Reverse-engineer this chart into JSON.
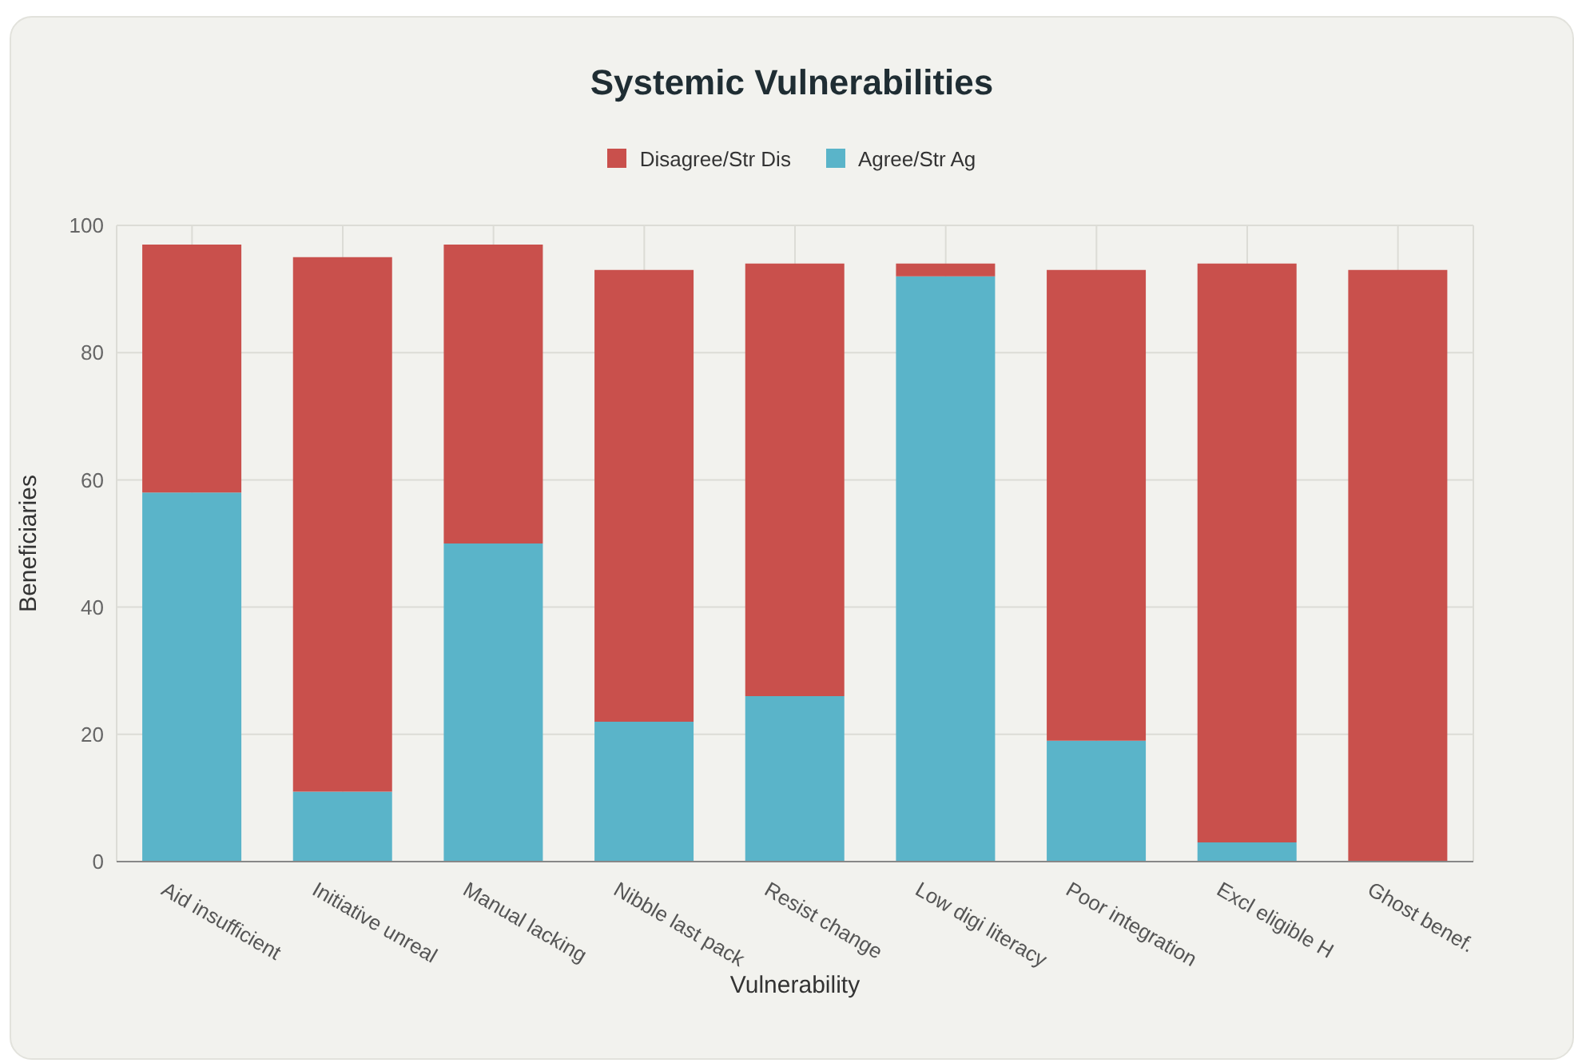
{
  "chart_data": {
    "type": "bar",
    "title": "Systemic Vulnerabilities",
    "xlabel": "Vulnerability",
    "ylabel": "Beneficiaries",
    "categories": [
      "Aid insufficient",
      "Initiative unreal",
      "Manual lacking",
      "Nibble last pack",
      "Resist change",
      "Low digi literacy",
      "Poor integration",
      "Excl eligible H",
      "Ghost benef."
    ],
    "series": [
      {
        "name": "Agree/Str Ag",
        "color": "#5ab4c9",
        "values": [
          58,
          11,
          50,
          22,
          26,
          92,
          19,
          3,
          0
        ]
      },
      {
        "name": "Disagree/Str Dis",
        "color": "#c9504c",
        "values": [
          39,
          84,
          47,
          71,
          68,
          2,
          74,
          91,
          93
        ]
      }
    ],
    "stacked": true,
    "ylim": [
      0,
      100
    ],
    "yticks": [
      0,
      20,
      40,
      60,
      80,
      100
    ],
    "grid": true,
    "legend": "top"
  }
}
